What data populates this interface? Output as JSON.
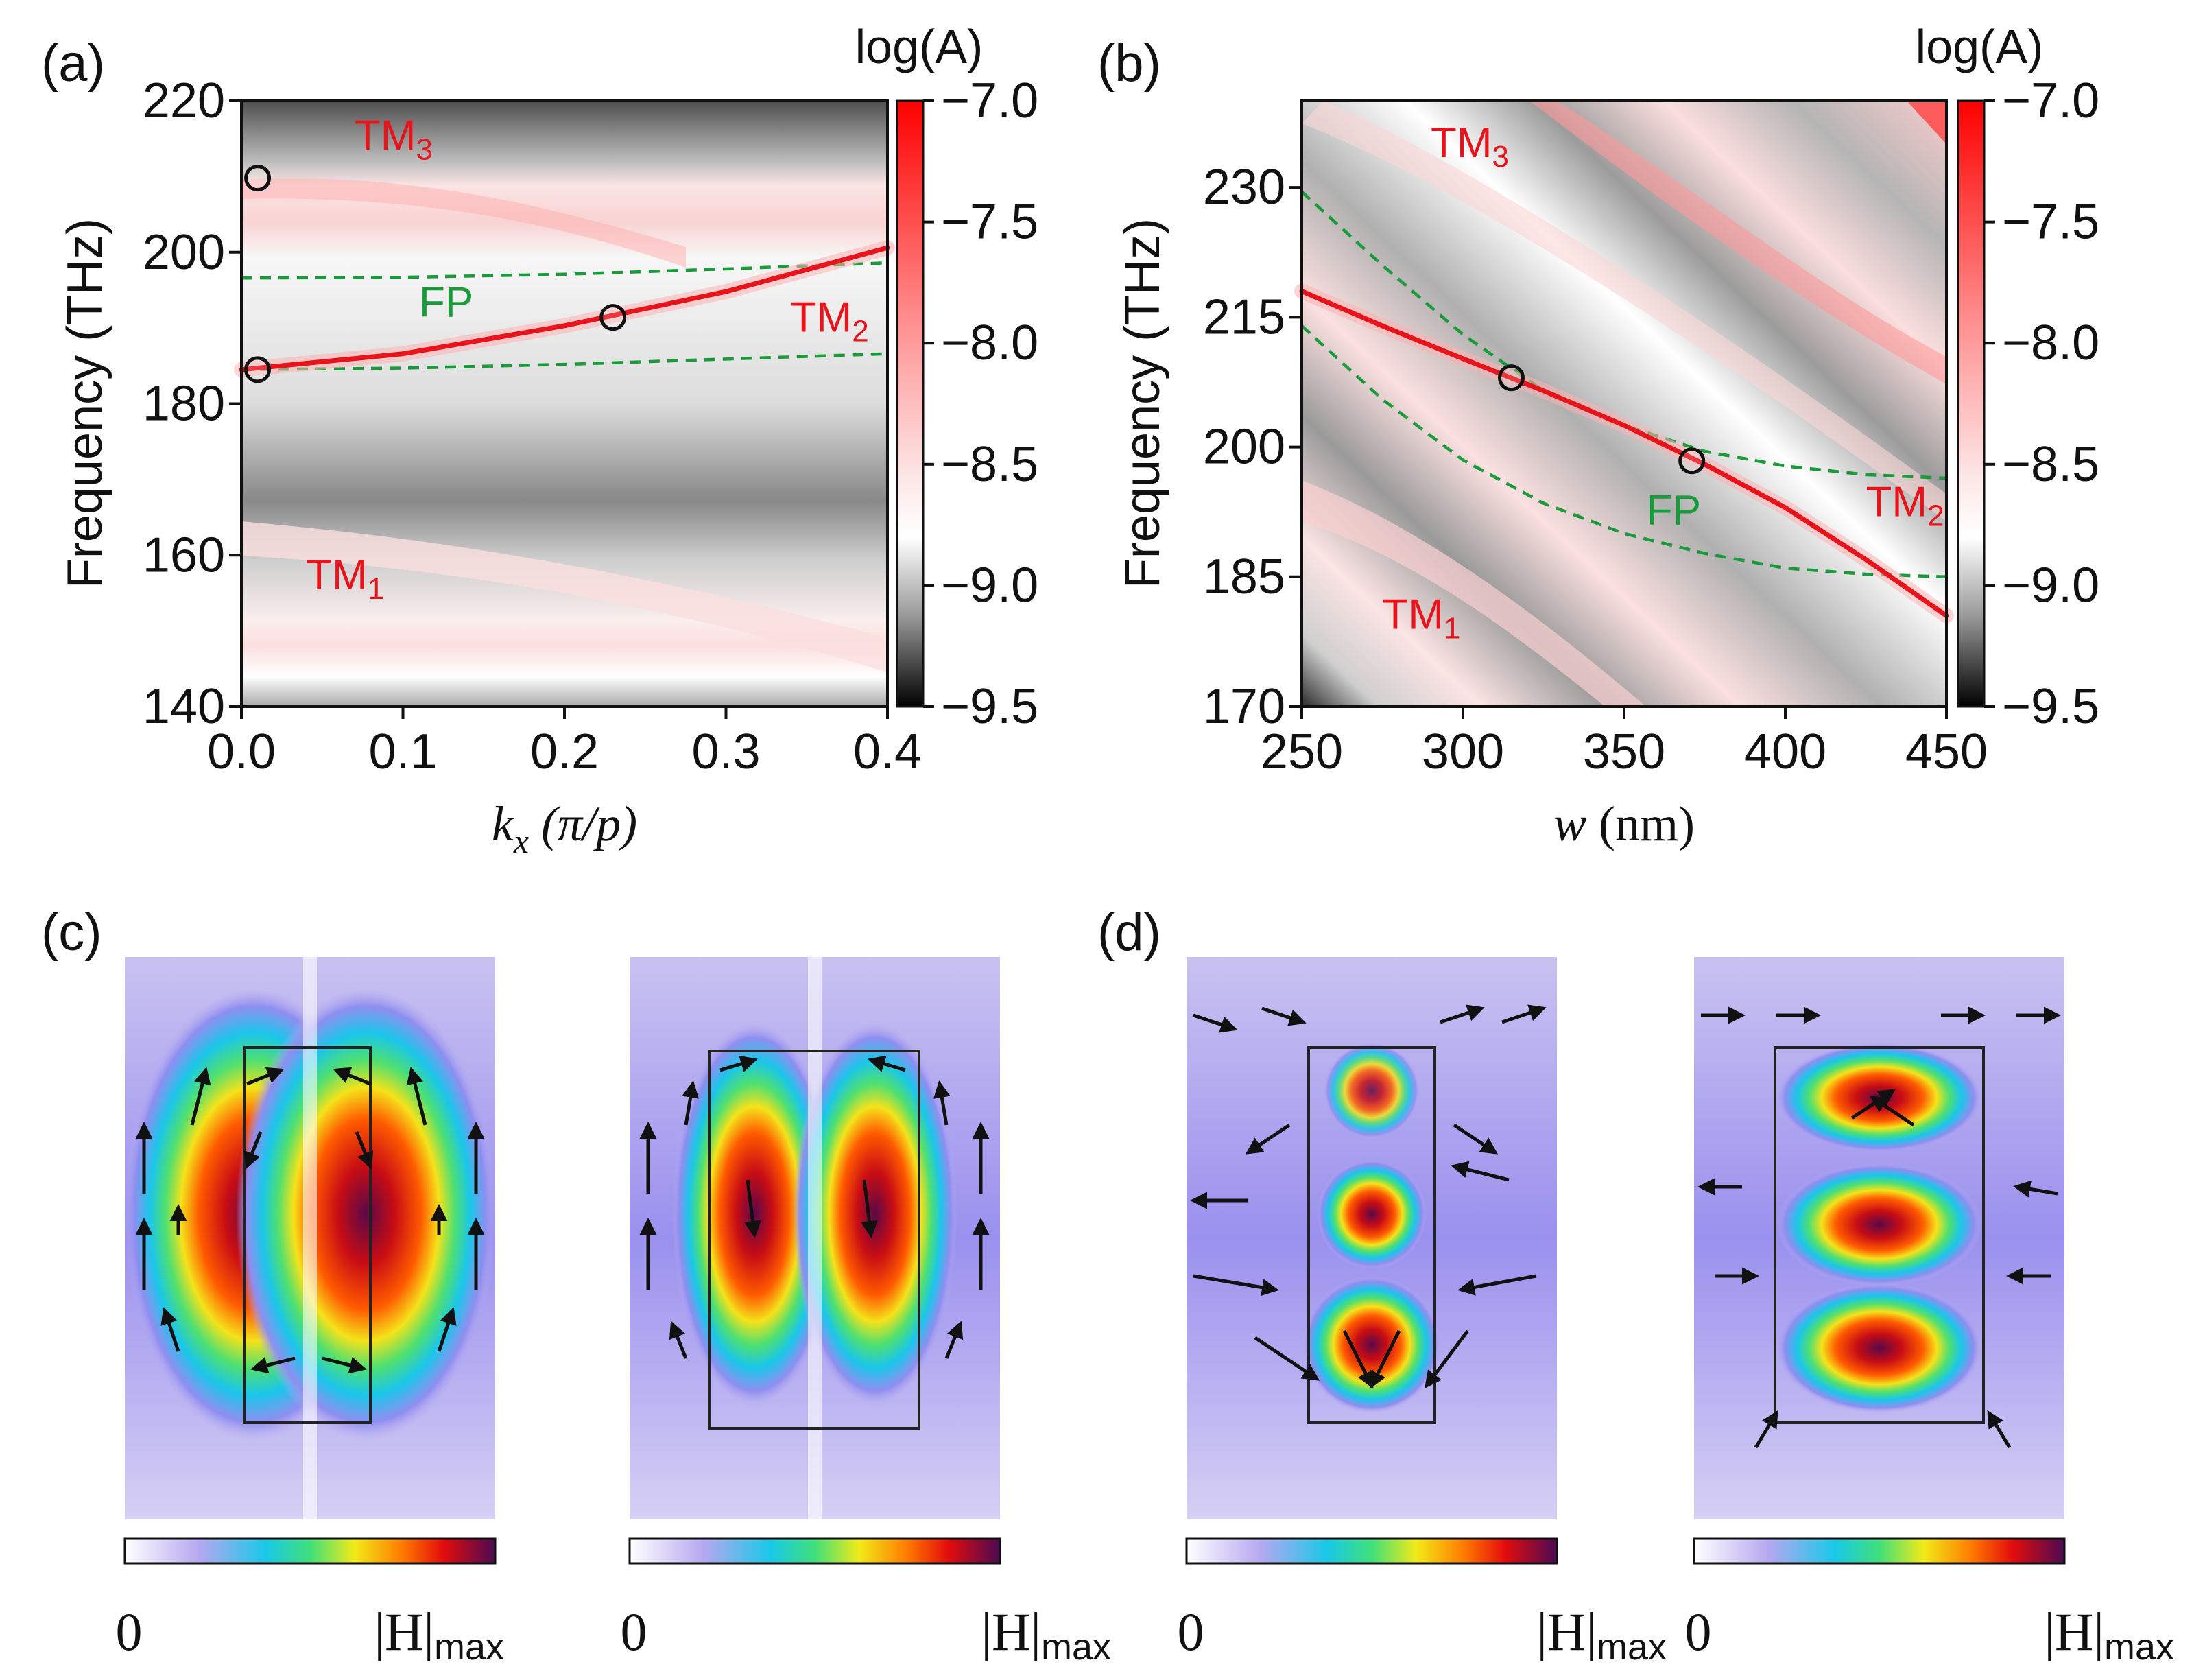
{
  "chart_data": [
    {
      "type": "heatmap",
      "panel": "(a)",
      "title": "",
      "xlabel": "k",
      "xlabel_sub": "x",
      "xlabel_unit": " (π/p)",
      "ylabel": "Frequency (THz)",
      "xlim": [
        0.0,
        0.4
      ],
      "ylim": [
        140,
        220
      ],
      "xticks": [
        "0.0",
        "0.1",
        "0.2",
        "0.3",
        "0.4"
      ],
      "yticks": [
        "140",
        "160",
        "180",
        "200",
        "220"
      ],
      "xtick_values": [
        0.0,
        0.1,
        0.2,
        0.3,
        0.4
      ],
      "ytick_values": [
        140,
        160,
        180,
        200,
        220
      ],
      "colorbar": {
        "label": "log(A)",
        "range": [
          -9.5,
          -7.0
        ],
        "ticks": [
          "−7.0",
          "−7.5",
          "−8.0",
          "−8.5",
          "−9.0",
          "−9.5"
        ],
        "tick_values": [
          -7.0,
          -7.5,
          -8.0,
          -8.5,
          -9.0,
          -9.5
        ]
      },
      "mode_labels": [
        {
          "main": "TM",
          "sub": "3",
          "x": 0.07,
          "y": 213.5,
          "color": "#e8141c"
        },
        {
          "main": "FP",
          "sub": "",
          "x": 0.11,
          "y": 191.5,
          "color": "#1a9a3a"
        },
        {
          "main": "TM",
          "sub": "2",
          "x": 0.34,
          "y": 189.5,
          "color": "#e8141c"
        },
        {
          "main": "TM",
          "sub": "1",
          "x": 0.04,
          "y": 155.5,
          "color": "#e8141c"
        }
      ],
      "series": [
        {
          "name": "FP upper",
          "style": "dashed",
          "color": "#1a9a3a",
          "x": [
            0.0,
            0.1,
            0.2,
            0.3,
            0.4
          ],
          "y": [
            196.6,
            196.7,
            197.1,
            197.8,
            198.6
          ]
        },
        {
          "name": "FP lower",
          "style": "dashed",
          "color": "#1a9a3a",
          "x": [
            0.0,
            0.1,
            0.2,
            0.3,
            0.4
          ],
          "y": [
            184.5,
            184.7,
            185.2,
            185.9,
            186.6
          ]
        },
        {
          "name": "TM2 resonance",
          "style": "band",
          "color": "#e8141c",
          "x": [
            0.0,
            0.1,
            0.2,
            0.3,
            0.4
          ],
          "y": [
            184.5,
            186.6,
            190.3,
            194.8,
            200.6
          ]
        }
      ],
      "markers": [
        {
          "x": 0.01,
          "y": 209.8
        },
        {
          "x": 0.01,
          "y": 184.5
        },
        {
          "x": 0.23,
          "y": 191.4
        }
      ]
    },
    {
      "type": "heatmap",
      "panel": "(b)",
      "title": "",
      "xlabel": "w",
      "xlabel_unit": " (nm)",
      "ylabel": "Frequency (THz)",
      "xlim": [
        250,
        450
      ],
      "ylim": [
        170,
        240
      ],
      "xticks": [
        "250",
        "300",
        "350",
        "400",
        "450"
      ],
      "yticks": [
        "170",
        "185",
        "200",
        "215",
        "230"
      ],
      "xtick_values": [
        250,
        300,
        350,
        400,
        450
      ],
      "ytick_values": [
        170,
        185,
        200,
        215,
        230
      ],
      "colorbar": {
        "label": "log(A)",
        "range": [
          -9.5,
          -7.0
        ],
        "ticks": [
          "−7.0",
          "−7.5",
          "−8.0",
          "−8.5",
          "−9.0",
          "−9.5"
        ],
        "tick_values": [
          -7.0,
          -7.5,
          -8.0,
          -8.5,
          -9.0,
          -9.5
        ]
      },
      "mode_labels": [
        {
          "main": "TM",
          "sub": "3",
          "x": 290,
          "y": 233.5,
          "color": "#e8141c"
        },
        {
          "main": "FP",
          "sub": "",
          "x": 357,
          "y": 191.0,
          "color": "#1a9a3a"
        },
        {
          "main": "TM",
          "sub": "2",
          "x": 425,
          "y": 192.0,
          "color": "#e8141c"
        },
        {
          "main": "TM",
          "sub": "1",
          "x": 275,
          "y": 179.0,
          "color": "#e8141c"
        }
      ],
      "series": [
        {
          "name": "FP upper",
          "style": "dashed",
          "color": "#1a9a3a",
          "x": [
            250,
            275,
            300,
            325,
            350,
            375,
            400,
            425,
            450
          ],
          "y": [
            229.5,
            221.0,
            213.0,
            206.5,
            202.5,
            199.5,
            197.8,
            196.8,
            196.4
          ]
        },
        {
          "name": "FP lower",
          "style": "dashed",
          "color": "#1a9a3a",
          "x": [
            250,
            275,
            300,
            325,
            350,
            375,
            400,
            425,
            450
          ],
          "y": [
            214.0,
            205.5,
            198.5,
            193.5,
            190.0,
            187.7,
            186.0,
            185.3,
            185.0
          ]
        },
        {
          "name": "TM2 resonance",
          "style": "band",
          "color": "#e8141c",
          "x": [
            250,
            275,
            300,
            325,
            350,
            375,
            400,
            425,
            450
          ],
          "y": [
            218.0,
            214.0,
            210.2,
            206.5,
            202.5,
            198.0,
            193.0,
            187.0,
            180.5
          ]
        }
      ],
      "markers": [
        {
          "x": 315,
          "y": 208.0
        },
        {
          "x": 371,
          "y": 198.4
        }
      ]
    }
  ],
  "field_panels": {
    "c_label": "(c)",
    "d_label": "(d)",
    "scale_min": "0",
    "scale_max_main": "|H|",
    "scale_max_sub": "max"
  }
}
